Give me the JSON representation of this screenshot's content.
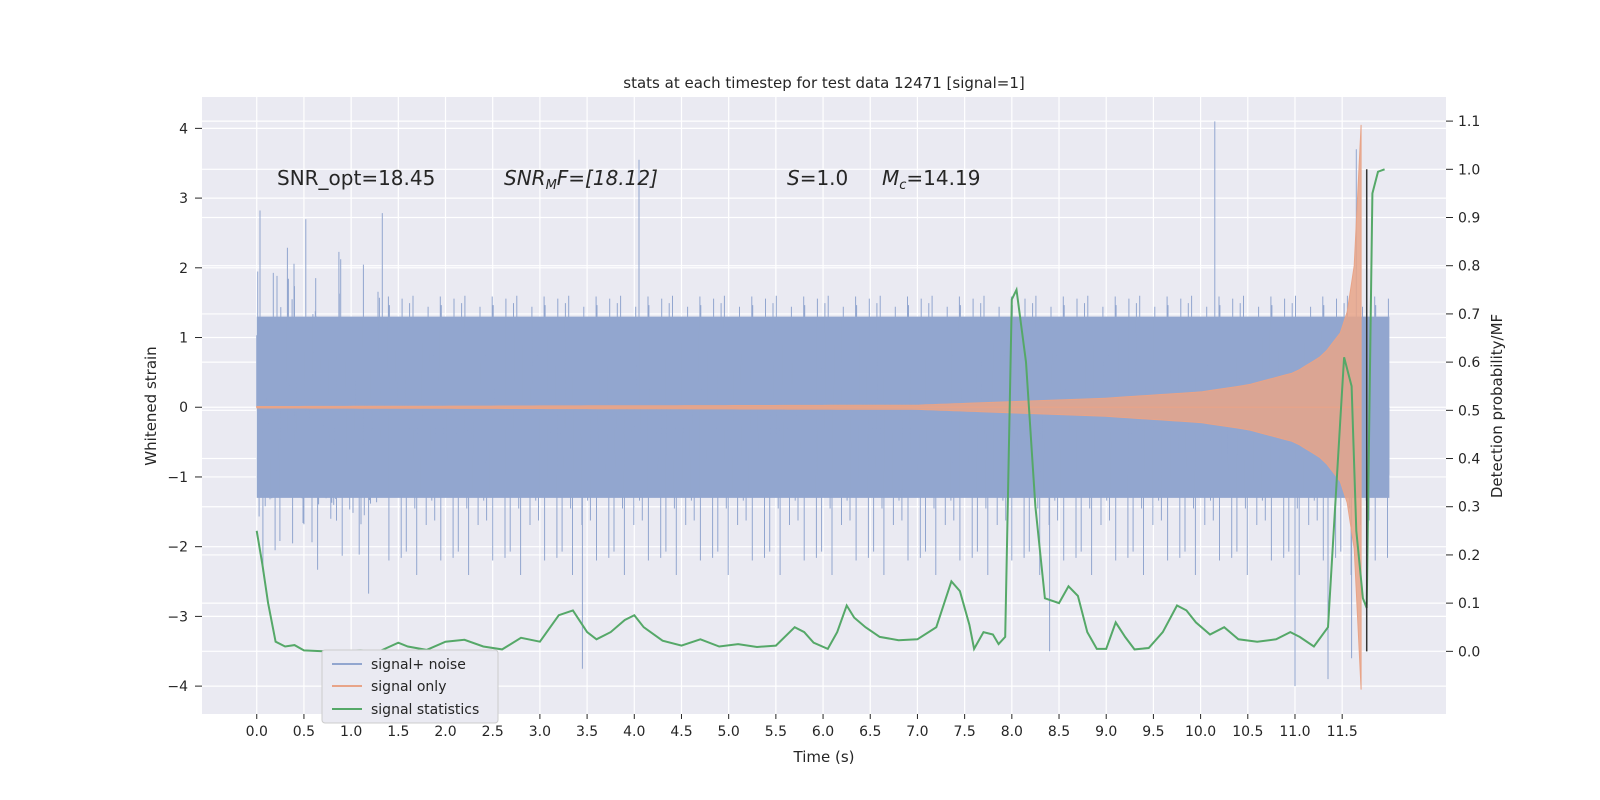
{
  "chart_data": {
    "type": "line",
    "title": "stats at each timestep for test data 12471 [signal=1]",
    "xlabel": "Time (s)",
    "ylabel": "Whitened strain",
    "y2label": "Detection probability/MF",
    "xlim": [
      -0.58,
      12.6
    ],
    "ylim": [
      -4.4,
      4.45
    ],
    "y2lim": [
      -0.13,
      1.15
    ],
    "grid": true,
    "legend_position": "lower-left",
    "x_ticks": [
      0.0,
      0.5,
      1.0,
      1.5,
      2.0,
      2.5,
      3.0,
      3.5,
      4.0,
      4.5,
      5.0,
      5.5,
      6.0,
      6.5,
      7.0,
      7.5,
      8.0,
      8.5,
      9.0,
      9.5,
      10.0,
      10.5,
      11.0,
      11.5
    ],
    "x_tick_labels": [
      "0.0",
      "0.5",
      "1.0",
      "1.5",
      "2.0",
      "2.5",
      "3.0",
      "3.5",
      "4.0",
      "4.5",
      "5.0",
      "5.5",
      "6.0",
      "6.5",
      "7.0",
      "7.5",
      "8.0",
      "8.5",
      "9.0",
      "9.5",
      "10.0",
      "10.5",
      "11.0",
      "11.5"
    ],
    "y_ticks": [
      4,
      3,
      2,
      1,
      0,
      -1,
      -2,
      -3,
      -4
    ],
    "y_tick_labels": [
      "4",
      "3",
      "2",
      "1",
      "0",
      "−1",
      "−2",
      "−3",
      "−4"
    ],
    "y2_ticks": [
      1.1,
      1.0,
      0.9,
      0.8,
      0.7,
      0.6,
      0.5,
      0.4,
      0.3,
      0.2,
      0.1,
      0.0
    ],
    "y2_tick_labels": [
      "1.1",
      "1.0",
      "0.9",
      "0.8",
      "0.7",
      "0.6",
      "0.5",
      "0.4",
      "0.3",
      "0.2",
      "0.1",
      "0.0"
    ],
    "annotations": {
      "snr_opt": "SNR_opt=18.45",
      "snr_mf_main": "SNR",
      "snr_mf_sub": "M",
      "snr_mf_rest": "F=[18.12]",
      "s_italic": "S",
      "s_value": "=1.0",
      "mc_main": "M",
      "mc_sub": "c",
      "mc_value": "=14.19"
    },
    "marker_line_x": 11.76,
    "series": [
      {
        "name": "signal+ noise",
        "color": "#92a6cf",
        "description_values": {
          "x_range": [
            0.0,
            12.0
          ],
          "dense_band": [
            -1.3,
            1.3
          ],
          "typical_peaks": [
            -2.8,
            3.0
          ],
          "extreme_peaks": [
            {
              "x": 4.05,
              "y": 3.55
            },
            {
              "x": 10.15,
              "y": 4.1
            },
            {
              "x": 11.0,
              "y": -4.0
            },
            {
              "x": 11.6,
              "y": -3.6
            },
            {
              "x": 8.4,
              "y": -3.5
            },
            {
              "x": 3.45,
              "y": -3.75
            },
            {
              "x": 11.35,
              "y": -3.9
            },
            {
              "x": 11.65,
              "y": 3.7
            }
          ]
        }
      },
      {
        "name": "signal only",
        "color": "#e8a488",
        "envelope": {
          "x": [
            0.0,
            7.0,
            8.0,
            9.0,
            10.0,
            10.5,
            11.0,
            11.3,
            11.5,
            11.6,
            11.65,
            11.7
          ],
          "amplitude": [
            0.01,
            0.03,
            0.08,
            0.13,
            0.22,
            0.32,
            0.5,
            0.75,
            1.1,
            1.6,
            2.4,
            4.05
          ]
        }
      },
      {
        "name": "signal statistics",
        "color": "#55a868",
        "axis": "right",
        "x": [
          0.0,
          0.06,
          0.12,
          0.2,
          0.3,
          0.4,
          0.5,
          0.7,
          0.9,
          1.1,
          1.3,
          1.5,
          1.6,
          1.8,
          2.0,
          2.2,
          2.4,
          2.6,
          2.8,
          3.0,
          3.2,
          3.35,
          3.5,
          3.6,
          3.75,
          3.9,
          4.0,
          4.1,
          4.3,
          4.5,
          4.7,
          4.9,
          5.1,
          5.3,
          5.5,
          5.7,
          5.8,
          5.9,
          6.05,
          6.15,
          6.25,
          6.33,
          6.45,
          6.6,
          6.8,
          7.0,
          7.2,
          7.3,
          7.36,
          7.45,
          7.55,
          7.6,
          7.7,
          7.8,
          7.86,
          7.93,
          8.0,
          8.05,
          8.15,
          8.25,
          8.35,
          8.5,
          8.6,
          8.7,
          8.8,
          8.9,
          9.0,
          9.1,
          9.2,
          9.3,
          9.45,
          9.6,
          9.75,
          9.85,
          9.95,
          10.1,
          10.25,
          10.4,
          10.6,
          10.8,
          10.95,
          11.05,
          11.2,
          11.35,
          11.48,
          11.52,
          11.6,
          11.65,
          11.72,
          11.76,
          11.82,
          11.88,
          11.95
        ],
        "y": [
          0.25,
          0.18,
          0.1,
          0.02,
          0.01,
          0.013,
          0.002,
          0.0,
          0.001,
          0.002,
          0.0,
          0.018,
          0.01,
          0.003,
          0.02,
          0.024,
          0.01,
          0.004,
          0.028,
          0.02,
          0.075,
          0.085,
          0.04,
          0.025,
          0.04,
          0.065,
          0.075,
          0.05,
          0.022,
          0.012,
          0.025,
          0.01,
          0.015,
          0.009,
          0.012,
          0.05,
          0.04,
          0.018,
          0.005,
          0.04,
          0.095,
          0.07,
          0.05,
          0.03,
          0.023,
          0.025,
          0.05,
          0.11,
          0.145,
          0.125,
          0.055,
          0.005,
          0.04,
          0.035,
          0.015,
          0.03,
          0.73,
          0.75,
          0.6,
          0.3,
          0.11,
          0.1,
          0.135,
          0.115,
          0.04,
          0.005,
          0.005,
          0.06,
          0.03,
          0.004,
          0.007,
          0.04,
          0.095,
          0.085,
          0.06,
          0.035,
          0.05,
          0.025,
          0.02,
          0.025,
          0.04,
          0.03,
          0.01,
          0.05,
          0.48,
          0.61,
          0.55,
          0.25,
          0.11,
          0.09,
          0.95,
          0.995,
          1.0
        ]
      }
    ]
  }
}
